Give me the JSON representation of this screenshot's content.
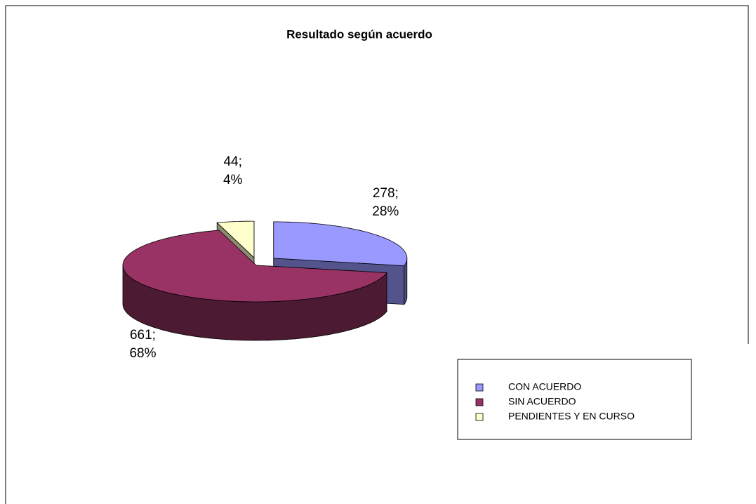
{
  "chart_data": {
    "type": "pie3d",
    "title": "Resultado según acuerdo",
    "categories": [
      "CON ACUERDO",
      "SIN ACUERDO",
      "PENDIENTES Y EN CURSO"
    ],
    "values": [
      278,
      661,
      44
    ],
    "value_labels": [
      "278;\n28%",
      "661;\n68%",
      "44;\n4%"
    ],
    "colors": [
      "#9999ff",
      "#993366",
      "#ffffcc"
    ],
    "legend": "lower right"
  }
}
